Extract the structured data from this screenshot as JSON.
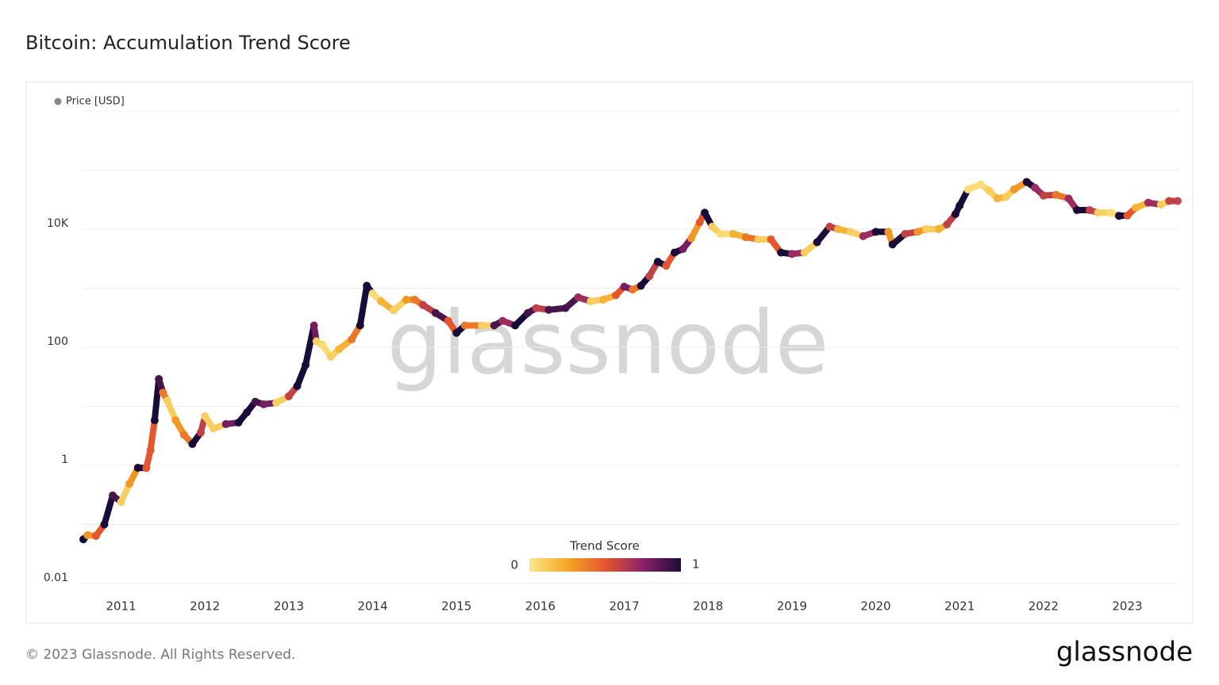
{
  "chart_data": {
    "type": "scatter",
    "title": "Bitcoin: Accumulation Trend Score",
    "log_y": true,
    "grid": true,
    "xlim": [
      2010.54,
      2023.62
    ],
    "xticks": [
      2011,
      2012,
      2013,
      2014,
      2015,
      2016,
      2017,
      2018,
      2019,
      2020,
      2021,
      2022,
      2023
    ],
    "ylim": [
      0.01,
      1000000
    ],
    "yticks": [
      0.01,
      1,
      100,
      {
        "value": 10000,
        "label": "10K"
      }
    ],
    "ygrid": [
      0.01,
      0.1,
      1,
      10,
      100,
      1000,
      10000,
      100000,
      1000000
    ],
    "colorscale": [
      "#fbe88a",
      "#f5a623",
      "#e4572e",
      "#8a226a",
      "#1a0c38"
    ],
    "colorbar": {
      "title": "Trend Score",
      "min": 0,
      "max": 1
    },
    "series": [
      {
        "name": "Price [USD]",
        "color": "#888888",
        "x": [
          2010.55,
          2010.6,
          2010.7,
          2010.8,
          2010.9,
          2011.0,
          2011.1,
          2011.2,
          2011.3,
          2011.35,
          2011.4,
          2011.45,
          2011.5,
          2011.55,
          2011.65,
          2011.75,
          2011.85,
          2011.95,
          2012.0,
          2012.1,
          2012.25,
          2012.4,
          2012.5,
          2012.6,
          2012.7,
          2012.85,
          2013.0,
          2013.1,
          2013.2,
          2013.3,
          2013.33,
          2013.4,
          2013.5,
          2013.6,
          2013.75,
          2013.85,
          2013.93,
          2014.0,
          2014.1,
          2014.25,
          2014.4,
          2014.5,
          2014.6,
          2014.75,
          2014.9,
          2015.0,
          2015.1,
          2015.3,
          2015.45,
          2015.55,
          2015.7,
          2015.85,
          2015.95,
          2016.1,
          2016.3,
          2016.45,
          2016.6,
          2016.75,
          2016.9,
          2017.0,
          2017.1,
          2017.2,
          2017.3,
          2017.4,
          2017.5,
          2017.6,
          2017.7,
          2017.8,
          2017.9,
          2017.96,
          2018.05,
          2018.15,
          2018.3,
          2018.45,
          2018.6,
          2018.75,
          2018.87,
          2019.0,
          2019.15,
          2019.3,
          2019.45,
          2019.55,
          2019.7,
          2019.85,
          2020.0,
          2020.15,
          2020.2,
          2020.35,
          2020.5,
          2020.6,
          2020.75,
          2020.85,
          2020.95,
          2021.0,
          2021.1,
          2021.25,
          2021.35,
          2021.45,
          2021.55,
          2021.65,
          2021.8,
          2021.9,
          2022.0,
          2022.15,
          2022.3,
          2022.4,
          2022.55,
          2022.65,
          2022.8,
          2022.9,
          2023.0,
          2023.1,
          2023.25,
          2023.4,
          2023.5,
          2023.6
        ],
        "values": [
          0.056,
          0.066,
          0.064,
          0.1,
          0.31,
          0.24,
          0.49,
          0.91,
          0.9,
          1.8,
          5.8,
          29,
          17,
          12.5,
          5.8,
          3.3,
          2.3,
          3.6,
          6.8,
          4.2,
          5,
          5.3,
          7.9,
          12,
          10.8,
          11.5,
          14.8,
          22,
          50,
          234,
          126,
          110,
          69,
          93,
          136,
          234,
          1100,
          815,
          600,
          420,
          640,
          640,
          520,
          380,
          280,
          175,
          234,
          234,
          234,
          280,
          234,
          380,
          460,
          430,
          460,
          700,
          600,
          640,
          760,
          1060,
          950,
          1100,
          1600,
          2800,
          2400,
          4000,
          4600,
          7000,
          13000,
          19000,
          11000,
          8300,
          8300,
          7300,
          6700,
          6700,
          4000,
          3800,
          4000,
          6000,
          11000,
          10000,
          9000,
          7600,
          9000,
          9000,
          5500,
          8300,
          9000,
          10000,
          10000,
          12000,
          18000,
          25000,
          47000,
          57000,
          45000,
          33000,
          35000,
          47000,
          63000,
          50000,
          37000,
          38000,
          33000,
          21000,
          21000,
          19000,
          19000,
          16800,
          17000,
          23000,
          28000,
          26000,
          30000,
          30000
        ],
        "scores": [
          1,
          0.3,
          0.5,
          1,
          0.9,
          0.1,
          0.3,
          1,
          0.5,
          0.5,
          1,
          0.9,
          0.4,
          0.1,
          0.3,
          0.4,
          1,
          0.6,
          0.1,
          0.1,
          0.8,
          1,
          1,
          0.9,
          0.8,
          0.1,
          0.6,
          1,
          1,
          0.8,
          0.1,
          0.05,
          0.1,
          0.2,
          0.4,
          1,
          1,
          0.05,
          0.2,
          0.1,
          0.3,
          0.4,
          0.6,
          0.9,
          0.5,
          1,
          0.4,
          0.1,
          0.9,
          0.7,
          1,
          0.9,
          0.6,
          0.9,
          0.9,
          0.7,
          0.1,
          0.2,
          0.5,
          0.8,
          0.4,
          1,
          0.6,
          1,
          0.5,
          1,
          0.8,
          0.3,
          0.5,
          1,
          0.1,
          0.05,
          0.2,
          0.4,
          0.1,
          0.5,
          1,
          0.7,
          0.1,
          1,
          0.6,
          0.2,
          0.1,
          0.7,
          1,
          0.3,
          1,
          0.6,
          0.3,
          0.1,
          0.2,
          0.6,
          1,
          1,
          0.05,
          0.05,
          0.1,
          0.2,
          0.1,
          0.3,
          1,
          0.7,
          0.6,
          0.4,
          0.7,
          1,
          0.6,
          0.1,
          0.05,
          1,
          0.5,
          0.2,
          0.7,
          0.1,
          0.6,
          0.6
        ]
      }
    ]
  },
  "watermark": "glassnode",
  "footer": {
    "copyright": "© 2023 Glassnode. All Rights Reserved.",
    "logo": "glassnode"
  }
}
